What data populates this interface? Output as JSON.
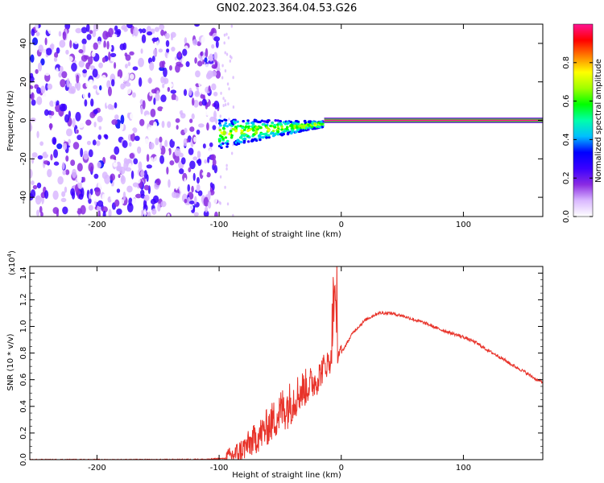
{
  "title": "GN02.2023.364.04.53.G26",
  "chart_data": [
    {
      "type": "heatmap",
      "xlabel": "Height of straight line (km)",
      "ylabel": "Frequency (Hz)",
      "xlim": [
        -255,
        165
      ],
      "ylim": [
        -50,
        50
      ],
      "x_ticks": [
        -200,
        -100,
        0,
        100
      ],
      "y_ticks": [
        -40,
        -20,
        0,
        20,
        40
      ],
      "regions": [
        {
          "description": "diffuse noise",
          "x": [
            -255,
            -100
          ],
          "freq_range": [
            -50,
            50
          ],
          "amplitude": [
            0.0,
            0.3
          ]
        },
        {
          "description": "signal appears",
          "x": [
            -100,
            -15
          ],
          "freq_center_start": -7,
          "freq_center_end": -2,
          "amplitude": [
            0.3,
            0.7
          ]
        },
        {
          "description": "steady carrier line",
          "x": [
            0,
            165
          ],
          "freq_center": 0,
          "amplitude": 1.0
        }
      ],
      "colorbar": {
        "label": "Normalized spectral amplitude",
        "ticks": [
          0.0,
          0.2,
          0.4,
          0.6,
          0.8
        ],
        "range": [
          0,
          1
        ],
        "colors": [
          "#ffffff",
          "#d9b8ff",
          "#8a2be2",
          "#3a00ff",
          "#0000ff",
          "#00bfff",
          "#00ffaa",
          "#00ff00",
          "#a0ff00",
          "#ffff00",
          "#ff8000",
          "#ff0000",
          "#ff1493"
        ]
      }
    },
    {
      "type": "line",
      "xlabel": "Height of straight line (km)",
      "ylabel": "SNR (10 * v/v)",
      "y_scale_label": "(x10",
      "y_scale_exp": "4",
      "y_scale_close": ")",
      "xlim": [
        -255,
        165
      ],
      "ylim": [
        0,
        1.45
      ],
      "x_ticks": [
        -200,
        -100,
        0,
        100
      ],
      "y_ticks": [
        0.0,
        0.2,
        0.4,
        0.6,
        0.8,
        1.0,
        1.2,
        1.4
      ],
      "color": "#e8332a",
      "series": [
        {
          "x": [
            -255,
            -200,
            -150,
            -110,
            -95,
            -85,
            -75,
            -65,
            -55,
            -48,
            -42,
            -35,
            -28,
            -20,
            -14,
            -8,
            -5,
            -3,
            0,
            10,
            20,
            30,
            40,
            50,
            60,
            70,
            80,
            90,
            100,
            110,
            120,
            130,
            140,
            150,
            160,
            165
          ],
          "y": [
            0.0,
            0.0,
            0.0,
            0.002,
            0.01,
            0.05,
            0.12,
            0.2,
            0.3,
            0.38,
            0.42,
            0.5,
            0.55,
            0.6,
            0.7,
            0.75,
            1.3,
            0.8,
            0.8,
            0.96,
            1.05,
            1.1,
            1.1,
            1.08,
            1.05,
            1.02,
            0.98,
            0.95,
            0.92,
            0.88,
            0.82,
            0.77,
            0.71,
            0.66,
            0.6,
            0.58
          ]
        }
      ]
    }
  ]
}
